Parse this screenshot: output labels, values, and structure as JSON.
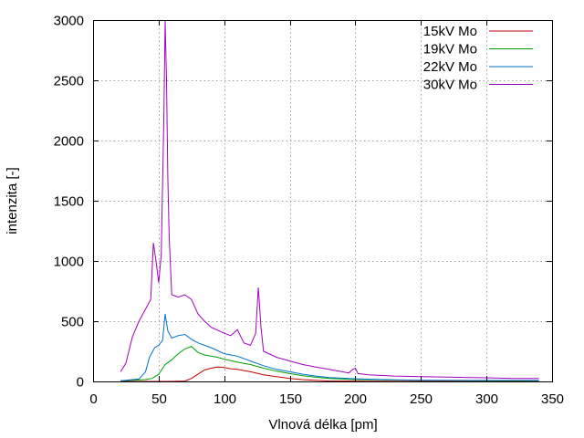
{
  "chart_data": {
    "type": "line",
    "xlabel": "Vlnová délka [pm]",
    "ylabel": "intenzita [-]",
    "xlim": [
      0,
      350
    ],
    "ylim": [
      0,
      3000
    ],
    "xticks": [
      0,
      50,
      100,
      150,
      200,
      250,
      300,
      350
    ],
    "yticks": [
      0,
      500,
      1000,
      1500,
      2000,
      2500,
      3000
    ],
    "grid": true,
    "legend_position": "top-right",
    "series": [
      {
        "name": "15kV Mo",
        "color": "#c00000",
        "points": [
          [
            21,
            0
          ],
          [
            60,
            0
          ],
          [
            70,
            3
          ],
          [
            75,
            25
          ],
          [
            80,
            60
          ],
          [
            85,
            95
          ],
          [
            90,
            110
          ],
          [
            95,
            120
          ],
          [
            100,
            115
          ],
          [
            105,
            105
          ],
          [
            110,
            100
          ],
          [
            115,
            90
          ],
          [
            120,
            80
          ],
          [
            130,
            55
          ],
          [
            140,
            40
          ],
          [
            150,
            25
          ],
          [
            160,
            15
          ],
          [
            170,
            8
          ],
          [
            180,
            4
          ],
          [
            200,
            2
          ],
          [
            250,
            0
          ],
          [
            340,
            0
          ]
        ]
      },
      {
        "name": "19kV Mo",
        "color": "#00a000",
        "points": [
          [
            21,
            5
          ],
          [
            30,
            10
          ],
          [
            40,
            15
          ],
          [
            45,
            25
          ],
          [
            50,
            60
          ],
          [
            55,
            140
          ],
          [
            60,
            180
          ],
          [
            65,
            230
          ],
          [
            70,
            270
          ],
          [
            75,
            290
          ],
          [
            80,
            240
          ],
          [
            85,
            220
          ],
          [
            90,
            210
          ],
          [
            95,
            200
          ],
          [
            100,
            185
          ],
          [
            110,
            160
          ],
          [
            120,
            140
          ],
          [
            130,
            110
          ],
          [
            140,
            85
          ],
          [
            150,
            65
          ],
          [
            160,
            48
          ],
          [
            170,
            35
          ],
          [
            180,
            25
          ],
          [
            200,
            15
          ],
          [
            250,
            8
          ],
          [
            300,
            5
          ],
          [
            340,
            5
          ]
        ]
      },
      {
        "name": "22kV Mo",
        "color": "#0070d0",
        "points": [
          [
            21,
            5
          ],
          [
            25,
            10
          ],
          [
            30,
            15
          ],
          [
            35,
            20
          ],
          [
            40,
            80
          ],
          [
            43,
            200
          ],
          [
            47,
            280
          ],
          [
            50,
            300
          ],
          [
            53,
            340
          ],
          [
            55,
            560
          ],
          [
            57,
            420
          ],
          [
            60,
            360
          ],
          [
            65,
            380
          ],
          [
            70,
            390
          ],
          [
            75,
            350
          ],
          [
            80,
            320
          ],
          [
            85,
            300
          ],
          [
            90,
            280
          ],
          [
            100,
            230
          ],
          [
            110,
            210
          ],
          [
            120,
            170
          ],
          [
            130,
            130
          ],
          [
            140,
            100
          ],
          [
            150,
            80
          ],
          [
            160,
            60
          ],
          [
            170,
            45
          ],
          [
            180,
            32
          ],
          [
            200,
            22
          ],
          [
            220,
            15
          ],
          [
            250,
            10
          ],
          [
            300,
            8
          ],
          [
            340,
            8
          ]
        ]
      },
      {
        "name": "30kV Mo",
        "color": "#a000c0",
        "points": [
          [
            21,
            80
          ],
          [
            25,
            150
          ],
          [
            30,
            370
          ],
          [
            35,
            500
          ],
          [
            40,
            600
          ],
          [
            44,
            680
          ],
          [
            46,
            1150
          ],
          [
            48,
            1000
          ],
          [
            50,
            820
          ],
          [
            52,
            1050
          ],
          [
            54,
            2200
          ],
          [
            55,
            3000
          ],
          [
            56,
            2500
          ],
          [
            57,
            1700
          ],
          [
            58,
            1200
          ],
          [
            60,
            720
          ],
          [
            65,
            700
          ],
          [
            70,
            720
          ],
          [
            75,
            680
          ],
          [
            80,
            560
          ],
          [
            85,
            500
          ],
          [
            90,
            450
          ],
          [
            100,
            400
          ],
          [
            105,
            380
          ],
          [
            110,
            430
          ],
          [
            115,
            320
          ],
          [
            120,
            300
          ],
          [
            124,
            400
          ],
          [
            126,
            780
          ],
          [
            128,
            450
          ],
          [
            130,
            250
          ],
          [
            140,
            200
          ],
          [
            150,
            170
          ],
          [
            160,
            140
          ],
          [
            170,
            120
          ],
          [
            180,
            100
          ],
          [
            190,
            80
          ],
          [
            195,
            70
          ],
          [
            198,
            100
          ],
          [
            200,
            110
          ],
          [
            202,
            65
          ],
          [
            210,
            55
          ],
          [
            230,
            45
          ],
          [
            250,
            40
          ],
          [
            275,
            35
          ],
          [
            300,
            30
          ],
          [
            320,
            25
          ],
          [
            340,
            25
          ]
        ]
      }
    ]
  }
}
